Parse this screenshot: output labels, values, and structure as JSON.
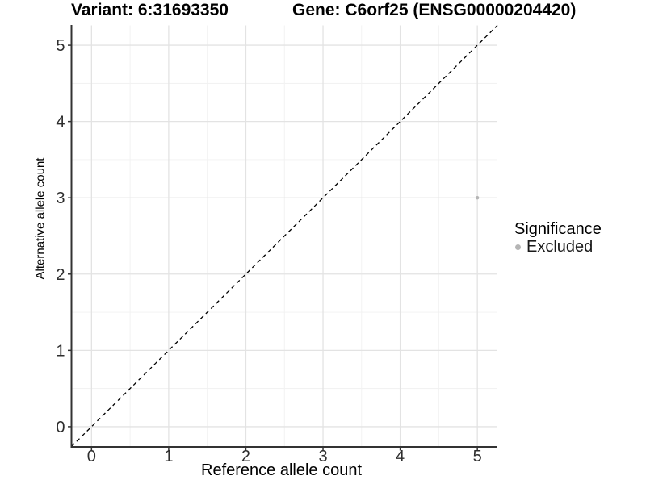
{
  "titles": {
    "variant": "Variant: 6:31693350",
    "gene": "Gene: C6orf25 (ENSG00000204420)"
  },
  "chart_data": {
    "type": "scatter",
    "title_left": "Variant: 6:31693350",
    "title_right": "Gene: C6orf25 (ENSG00000204420)",
    "xlabel": "Reference allele count",
    "ylabel": "Alternative allele count",
    "xlim": [
      -0.26,
      5.26
    ],
    "ylim": [
      -0.26,
      5.26
    ],
    "x_ticks": [
      0,
      1,
      2,
      3,
      4,
      5
    ],
    "y_ticks": [
      0,
      1,
      2,
      3,
      4,
      5
    ],
    "x_minor_ticks": [
      0.5,
      1.5,
      2.5,
      3.5,
      4.5
    ],
    "y_minor_ticks": [
      0.5,
      1.5,
      2.5,
      3.5,
      4.5
    ],
    "grid": "major and minor, light gray on white",
    "identity_line": {
      "slope": 1,
      "intercept": 0,
      "style": "dashed",
      "color": "#000000"
    },
    "series": [
      {
        "name": "Excluded",
        "color": "#b5b5b5",
        "points": [
          {
            "x": 5,
            "y": 3
          }
        ]
      }
    ],
    "legend": {
      "title": "Significance",
      "position": "right",
      "entries": [
        {
          "label": "Excluded",
          "color": "#b5b5b5"
        }
      ]
    }
  },
  "colors": {
    "background": "#ffffff",
    "grid_major": "#e3e3e3",
    "grid_minor": "#f1f1f1",
    "axis_line": "#333333",
    "tick_text": "#2e2e2e",
    "title_text": "#000000",
    "point": "#b5b5b5"
  }
}
